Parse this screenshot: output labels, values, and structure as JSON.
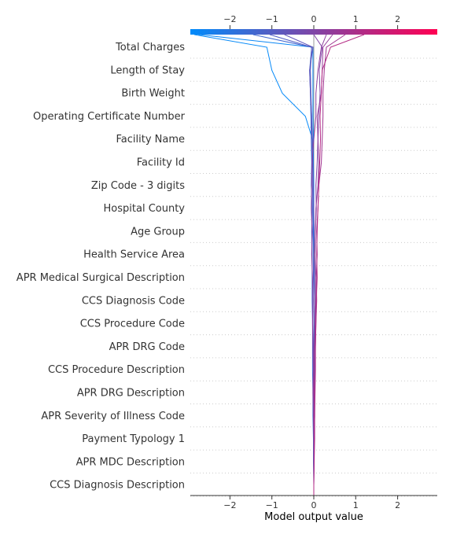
{
  "chart_data": {
    "type": "line",
    "subtype": "shap-decision-plot",
    "xlabel": "Model output value",
    "xlim": [
      -2.95,
      2.95
    ],
    "xticks": [
      -2,
      -1,
      0,
      1,
      2
    ],
    "base_value": 0,
    "grid": "dotted horizontal per feature",
    "color_bar": {
      "position": "top",
      "from": "#008bfb",
      "to": "#ff0052"
    },
    "features": [
      "Total Charges",
      "Length of Stay",
      "Birth Weight",
      "Operating Certificate Number",
      "Facility Name",
      "Facility Id",
      "Zip Code - 3 digits",
      "Hospital County",
      "Age Group",
      "Health Service Area",
      "APR Medical Surgical Description",
      "CCS Diagnosis Code",
      "CCS Procedure Code",
      "APR DRG Code",
      "CCS Procedure Description",
      "APR DRG Description",
      "APR Severity of Illness Code",
      "Payment Typology 1",
      "APR MDC Description",
      "CCS Diagnosis Description"
    ],
    "series": [
      {
        "output": -2.85,
        "values": [
          0.0,
          0.0,
          0.0,
          0.01,
          0.0,
          0.0,
          0.0,
          0.0,
          0.0,
          0.0,
          -0.01,
          0.0,
          -0.01,
          -0.01,
          -0.01,
          -0.03,
          -0.2,
          -0.75,
          -1.0,
          -1.12,
          -2.85
        ]
      },
      {
        "output": -2.75,
        "values": [
          0.0,
          0.0,
          0.0,
          0.0,
          0.0,
          0.0,
          0.0,
          0.0,
          0.0,
          0.0,
          -0.01,
          -0.01,
          0.0,
          0.0,
          -0.01,
          -0.01,
          -0.02,
          -0.02,
          -0.02,
          -0.02,
          -2.75
        ]
      },
      {
        "output": -1.45,
        "values": [
          0.0,
          -0.01,
          -0.01,
          -0.02,
          -0.02,
          -0.03,
          -0.03,
          -0.03,
          -0.04,
          -0.04,
          -0.04,
          -0.05,
          -0.04,
          -0.06,
          -0.05,
          -0.06,
          -0.07,
          -0.08,
          -0.1,
          -0.05,
          -1.45
        ]
      },
      {
        "output": -1.05,
        "values": [
          0.0,
          0.0,
          0.0,
          0.01,
          0.01,
          0.0,
          -0.01,
          0.0,
          0.0,
          -0.01,
          -0.01,
          -0.02,
          -0.02,
          -0.03,
          -0.04,
          -0.05,
          -0.05,
          -0.07,
          -0.08,
          -0.05,
          -1.05
        ]
      },
      {
        "output": -0.7,
        "values": [
          0.0,
          0.0,
          0.0,
          0.01,
          0.02,
          0.01,
          0.03,
          0.02,
          0.03,
          0.02,
          0.02,
          0.01,
          0.0,
          -0.01,
          -0.02,
          -0.03,
          -0.05,
          -0.08,
          -0.1,
          -0.02,
          -0.7
        ]
      },
      {
        "output": 0.0,
        "values": [
          0.0,
          0.0,
          0.01,
          0.02,
          0.01,
          0.03,
          0.02,
          0.04,
          0.05,
          0.05,
          0.03,
          0.04,
          0.06,
          0.05,
          0.08,
          0.1,
          0.12,
          0.15,
          0.13,
          0.2,
          0.0
        ]
      },
      {
        "output": 0.3,
        "values": [
          0.0,
          0.0,
          0.0,
          -0.01,
          -0.02,
          -0.01,
          -0.02,
          -0.03,
          -0.02,
          -0.03,
          -0.05,
          -0.04,
          -0.06,
          -0.05,
          -0.04,
          0.0,
          0.05,
          0.05,
          0.1,
          0.18,
          0.3
        ]
      },
      {
        "output": 0.45,
        "values": [
          0.0,
          0.0,
          0.0,
          0.01,
          0.0,
          0.0,
          0.01,
          0.02,
          0.03,
          0.02,
          0.03,
          0.04,
          0.05,
          0.1,
          0.12,
          0.1,
          0.08,
          0.18,
          0.2,
          0.22,
          0.45
        ]
      },
      {
        "output": 0.75,
        "values": [
          0.0,
          0.01,
          0.02,
          0.02,
          0.03,
          0.04,
          0.04,
          0.05,
          0.07,
          0.06,
          0.08,
          0.07,
          0.1,
          0.12,
          0.18,
          0.2,
          0.22,
          0.22,
          0.25,
          0.3,
          0.75
        ]
      },
      {
        "output": 1.2,
        "values": [
          0.0,
          0.01,
          0.01,
          0.02,
          0.02,
          0.03,
          0.04,
          0.05,
          0.06,
          0.08,
          0.07,
          0.08,
          0.1,
          0.12,
          0.14,
          0.16,
          0.15,
          0.18,
          0.2,
          0.4,
          1.2
        ]
      }
    ]
  }
}
